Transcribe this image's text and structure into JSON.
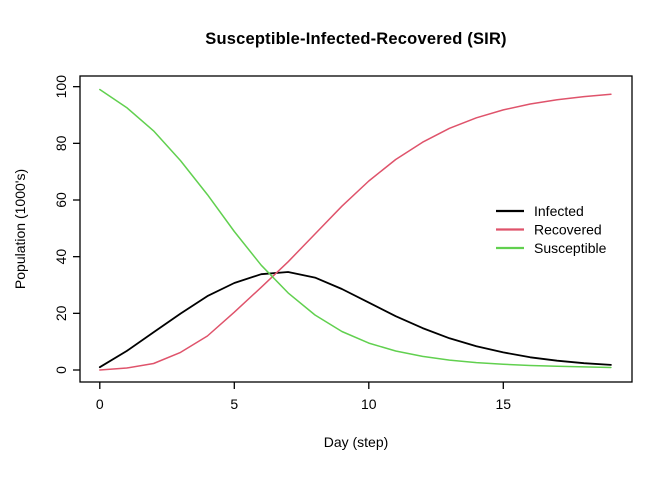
{
  "chart_data": {
    "type": "line",
    "title": "Susceptible-Infected-Recovered (SIR)",
    "xlabel": "Day (step)",
    "ylabel": "Population (1000's)",
    "x": [
      0,
      1,
      2,
      3,
      4,
      5,
      6,
      7,
      8,
      9,
      10,
      11,
      12,
      13,
      14,
      15,
      16,
      17,
      18,
      19
    ],
    "xlim": [
      0,
      19
    ],
    "ylim": [
      0,
      100
    ],
    "xticks": [
      0,
      5,
      10,
      15
    ],
    "yticks": [
      0,
      20,
      40,
      60,
      80,
      100
    ],
    "grid": false,
    "legend_position": "right-middle",
    "legend": [
      "Infected",
      "Recovered",
      "Susceptible"
    ],
    "series": [
      {
        "name": "Infected",
        "color": "#000000",
        "values": [
          1.0,
          6.7,
          13.3,
          19.9,
          26.1,
          30.7,
          33.8,
          34.6,
          32.6,
          28.6,
          23.8,
          19.0,
          14.8,
          11.2,
          8.4,
          6.2,
          4.5,
          3.3,
          2.4,
          1.8
        ]
      },
      {
        "name": "Recovered",
        "color": "#DF536B",
        "values": [
          0.0,
          0.7,
          2.3,
          6.2,
          12.0,
          20.4,
          29.2,
          38.2,
          48.0,
          57.8,
          66.7,
          74.3,
          80.4,
          85.3,
          89.0,
          91.8,
          93.9,
          95.4,
          96.5,
          97.3
        ]
      },
      {
        "name": "Susceptible",
        "color": "#61D04F",
        "values": [
          99.0,
          92.6,
          84.4,
          73.9,
          61.9,
          48.9,
          37.0,
          27.2,
          19.4,
          13.6,
          9.5,
          6.7,
          4.8,
          3.5,
          2.6,
          2.0,
          1.6,
          1.3,
          1.1,
          0.9
        ]
      }
    ]
  }
}
